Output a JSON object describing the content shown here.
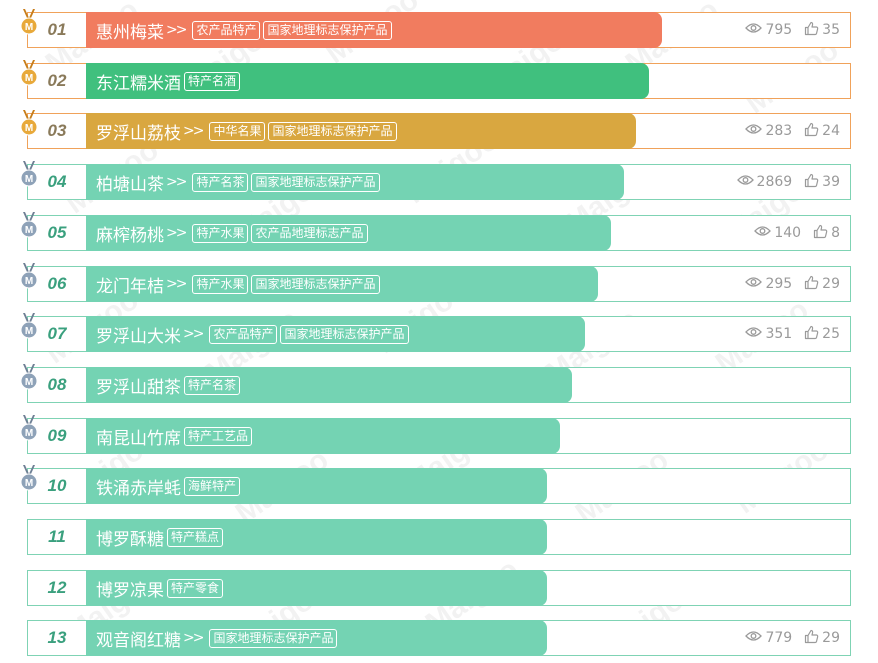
{
  "colors": {
    "bar_rank1": "#f17c5f",
    "bar_rank2": "#40c07e",
    "bar_rank3": "#d9a740",
    "bar_default": "#74d3b3",
    "medal_gold": "#e8a93a",
    "medal_silver": "#8ea2b8"
  },
  "watermark_text": "Maigoo",
  "items": [
    {
      "rank": "01",
      "name": "惠州梅菜",
      "arrows": ">>",
      "tags": [
        "农产品特产",
        "国家地理标志保护产品"
      ],
      "views": "795",
      "likes": "35",
      "medal": "gold",
      "bar_fraction": 0.9,
      "color": "#f17c5f"
    },
    {
      "rank": "02",
      "name": "东江糯米酒",
      "arrows": "",
      "tags": [
        "特产名酒"
      ],
      "views": "",
      "likes": "",
      "medal": "gold",
      "bar_fraction": 0.88,
      "color": "#40c07e"
    },
    {
      "rank": "03",
      "name": "罗浮山荔枝",
      "arrows": ">>",
      "tags": [
        "中华名果",
        "国家地理标志保护产品"
      ],
      "views": "283",
      "likes": "24",
      "medal": "gold",
      "bar_fraction": 0.86,
      "color": "#d9a740"
    },
    {
      "rank": "04",
      "name": "柏塘山茶",
      "arrows": ">>",
      "tags": [
        "特产名茶",
        "国家地理标志保护产品"
      ],
      "views": "2869",
      "likes": "39",
      "medal": "silver",
      "bar_fraction": 0.84,
      "color": "#74d3b3"
    },
    {
      "rank": "05",
      "name": "麻榨杨桃",
      "arrows": ">>",
      "tags": [
        "特产水果",
        "农产品地理标志产品"
      ],
      "views": "140",
      "likes": "8",
      "medal": "silver",
      "bar_fraction": 0.82,
      "color": "#74d3b3"
    },
    {
      "rank": "06",
      "name": "龙门年桔",
      "arrows": ">>",
      "tags": [
        "特产水果",
        "国家地理标志保护产品"
      ],
      "views": "295",
      "likes": "29",
      "medal": "silver",
      "bar_fraction": 0.8,
      "color": "#74d3b3"
    },
    {
      "rank": "07",
      "name": "罗浮山大米",
      "arrows": ">>",
      "tags": [
        "农产品特产",
        "国家地理标志保护产品"
      ],
      "views": "351",
      "likes": "25",
      "medal": "silver",
      "bar_fraction": 0.78,
      "color": "#74d3b3"
    },
    {
      "rank": "08",
      "name": "罗浮山甜茶",
      "arrows": "",
      "tags": [
        "特产名茶"
      ],
      "views": "",
      "likes": "",
      "medal": "silver",
      "bar_fraction": 0.76,
      "color": "#74d3b3"
    },
    {
      "rank": "09",
      "name": "南昆山竹席",
      "arrows": "",
      "tags": [
        "特产工艺品"
      ],
      "views": "",
      "likes": "",
      "medal": "silver",
      "bar_fraction": 0.74,
      "color": "#74d3b3"
    },
    {
      "rank": "10",
      "name": "铁涌赤岸蚝",
      "arrows": "",
      "tags": [
        "海鲜特产"
      ],
      "views": "",
      "likes": "",
      "medal": "silver",
      "bar_fraction": 0.72,
      "color": "#74d3b3"
    },
    {
      "rank": "11",
      "name": "博罗酥糖",
      "arrows": "",
      "tags": [
        "特产糕点"
      ],
      "views": "",
      "likes": "",
      "medal": "",
      "bar_fraction": 0.72,
      "color": "#74d3b3"
    },
    {
      "rank": "12",
      "name": "博罗凉果",
      "arrows": "",
      "tags": [
        "特产零食"
      ],
      "views": "",
      "likes": "",
      "medal": "",
      "bar_fraction": 0.72,
      "color": "#74d3b3"
    },
    {
      "rank": "13",
      "name": "观音阁红糖",
      "arrows": ">>",
      "tags": [
        "国家地理标志保护产品"
      ],
      "views": "779",
      "likes": "29",
      "medal": "",
      "bar_fraction": 0.72,
      "color": "#74d3b3"
    }
  ]
}
